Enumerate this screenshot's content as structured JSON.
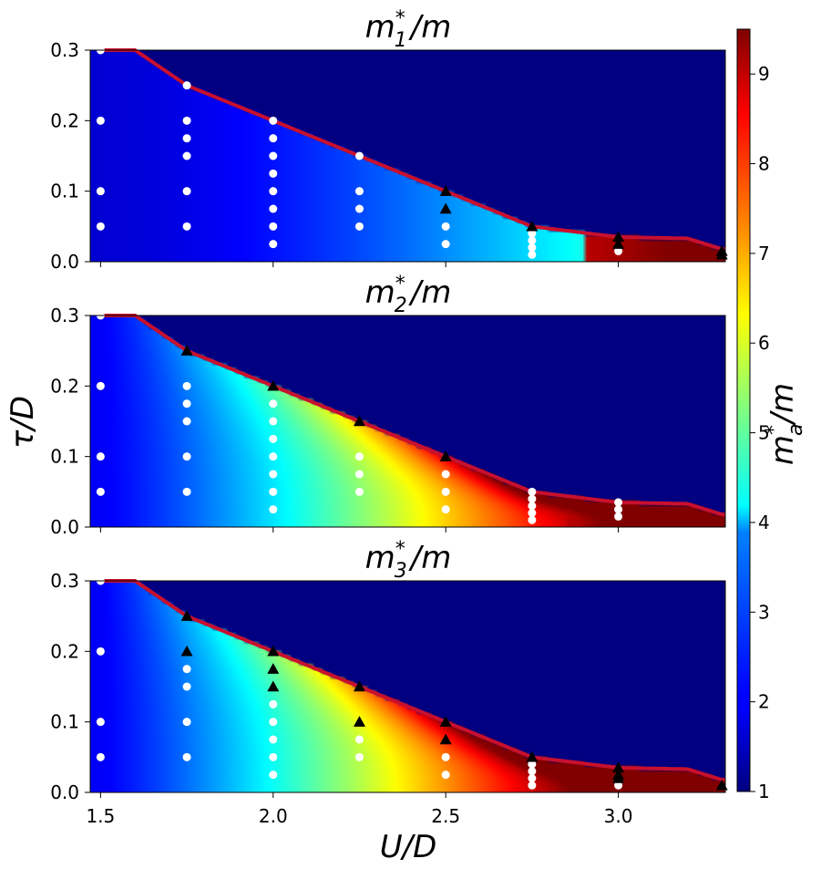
{
  "chart_data": [
    {
      "type": "heatmap",
      "panel": 1,
      "title_base": "m",
      "title_sub": "1",
      "title_sup": "*",
      "title_tail": "/m",
      "xlim": [
        1.47,
        3.31
      ],
      "ylim": [
        0.0,
        0.3
      ],
      "colormap": "jet",
      "clim": [
        1,
        9.5
      ],
      "boundary": {
        "x": [
          1.5,
          1.6,
          1.75,
          2.0,
          2.25,
          2.5,
          2.75,
          3.0,
          3.2,
          3.3
        ],
        "y": [
          0.3,
          0.3,
          0.25,
          0.2,
          0.15,
          0.1,
          0.05,
          0.035,
          0.033,
          0.018
        ]
      },
      "field_params": {
        "base": 1.7,
        "gain": 0.55,
        "power": 1.6,
        "edge": 0.0,
        "hot_from": 2.9,
        "hot_gain": 9.0
      },
      "circles": [
        {
          "x": 1.5,
          "y": 0.3
        },
        {
          "x": 1.5,
          "y": 0.2
        },
        {
          "x": 1.5,
          "y": 0.1
        },
        {
          "x": 1.5,
          "y": 0.05
        },
        {
          "x": 1.75,
          "y": 0.25
        },
        {
          "x": 1.75,
          "y": 0.2
        },
        {
          "x": 1.75,
          "y": 0.175
        },
        {
          "x": 1.75,
          "y": 0.15
        },
        {
          "x": 1.75,
          "y": 0.1
        },
        {
          "x": 1.75,
          "y": 0.05
        },
        {
          "x": 2.0,
          "y": 0.2
        },
        {
          "x": 2.0,
          "y": 0.175
        },
        {
          "x": 2.0,
          "y": 0.15
        },
        {
          "x": 2.0,
          "y": 0.125
        },
        {
          "x": 2.0,
          "y": 0.1
        },
        {
          "x": 2.0,
          "y": 0.075
        },
        {
          "x": 2.0,
          "y": 0.05
        },
        {
          "x": 2.0,
          "y": 0.025
        },
        {
          "x": 2.25,
          "y": 0.15
        },
        {
          "x": 2.25,
          "y": 0.1
        },
        {
          "x": 2.25,
          "y": 0.075
        },
        {
          "x": 2.25,
          "y": 0.05
        },
        {
          "x": 2.5,
          "y": 0.05
        },
        {
          "x": 2.5,
          "y": 0.025
        },
        {
          "x": 2.75,
          "y": 0.04
        },
        {
          "x": 2.75,
          "y": 0.03
        },
        {
          "x": 2.75,
          "y": 0.02
        },
        {
          "x": 2.75,
          "y": 0.01
        },
        {
          "x": 3.0,
          "y": 0.015
        }
      ],
      "triangles": [
        {
          "x": 2.5,
          "y": 0.1
        },
        {
          "x": 2.5,
          "y": 0.075
        },
        {
          "x": 2.75,
          "y": 0.05
        },
        {
          "x": 3.0,
          "y": 0.035
        },
        {
          "x": 3.0,
          "y": 0.025
        },
        {
          "x": 3.3,
          "y": 0.015
        },
        {
          "x": 3.3,
          "y": 0.01
        }
      ]
    },
    {
      "type": "heatmap",
      "panel": 2,
      "title_base": "m",
      "title_sub": "2",
      "title_sup": "*",
      "title_tail": "/m",
      "xlim": [
        1.47,
        3.31
      ],
      "ylim": [
        0.0,
        0.3
      ],
      "colormap": "jet",
      "clim": [
        1,
        9.5
      ],
      "boundary": {
        "x": [
          1.5,
          1.6,
          1.75,
          2.0,
          2.25,
          2.5,
          2.75,
          3.0,
          3.2,
          3.3
        ],
        "y": [
          0.3,
          0.3,
          0.25,
          0.2,
          0.15,
          0.1,
          0.05,
          0.035,
          0.033,
          0.018
        ]
      },
      "field_params": {
        "base": 2.0,
        "gain": 1.55,
        "power": 1.25,
        "edge": 2.6,
        "hot_from": 2.85,
        "hot_gain": 9.0
      },
      "circles": [
        {
          "x": 1.5,
          "y": 0.3
        },
        {
          "x": 1.5,
          "y": 0.2
        },
        {
          "x": 1.5,
          "y": 0.1
        },
        {
          "x": 1.5,
          "y": 0.05
        },
        {
          "x": 1.75,
          "y": 0.2
        },
        {
          "x": 1.75,
          "y": 0.175
        },
        {
          "x": 1.75,
          "y": 0.15
        },
        {
          "x": 1.75,
          "y": 0.1
        },
        {
          "x": 1.75,
          "y": 0.05
        },
        {
          "x": 2.0,
          "y": 0.175
        },
        {
          "x": 2.0,
          "y": 0.15
        },
        {
          "x": 2.0,
          "y": 0.125
        },
        {
          "x": 2.0,
          "y": 0.1
        },
        {
          "x": 2.0,
          "y": 0.075
        },
        {
          "x": 2.0,
          "y": 0.05
        },
        {
          "x": 2.0,
          "y": 0.025
        },
        {
          "x": 2.25,
          "y": 0.1
        },
        {
          "x": 2.25,
          "y": 0.075
        },
        {
          "x": 2.25,
          "y": 0.05
        },
        {
          "x": 2.5,
          "y": 0.075
        },
        {
          "x": 2.5,
          "y": 0.05
        },
        {
          "x": 2.5,
          "y": 0.025
        },
        {
          "x": 2.75,
          "y": 0.05
        },
        {
          "x": 2.75,
          "y": 0.04
        },
        {
          "x": 2.75,
          "y": 0.03
        },
        {
          "x": 2.75,
          "y": 0.02
        },
        {
          "x": 2.75,
          "y": 0.01
        },
        {
          "x": 3.0,
          "y": 0.035
        },
        {
          "x": 3.0,
          "y": 0.025
        },
        {
          "x": 3.0,
          "y": 0.015
        }
      ],
      "triangles": [
        {
          "x": 1.75,
          "y": 0.25
        },
        {
          "x": 2.0,
          "y": 0.2
        },
        {
          "x": 2.25,
          "y": 0.15
        },
        {
          "x": 2.5,
          "y": 0.1
        }
      ]
    },
    {
      "type": "heatmap",
      "panel": 3,
      "title_base": "m",
      "title_sub": "3",
      "title_sup": "*",
      "title_tail": "/m",
      "xlim": [
        1.47,
        3.31
      ],
      "ylim": [
        0.0,
        0.3
      ],
      "colormap": "jet",
      "clim": [
        1,
        9.5
      ],
      "boundary": {
        "x": [
          1.5,
          1.6,
          1.75,
          2.0,
          2.25,
          2.5,
          2.75,
          3.0,
          3.2,
          3.3
        ],
        "y": [
          0.3,
          0.3,
          0.25,
          0.2,
          0.15,
          0.1,
          0.05,
          0.035,
          0.033,
          0.018
        ]
      },
      "field_params": {
        "base": 2.0,
        "gain": 1.7,
        "power": 1.2,
        "edge": 2.8,
        "hot_from": 2.85,
        "hot_gain": 9.0
      },
      "circles": [
        {
          "x": 1.5,
          "y": 0.3
        },
        {
          "x": 1.5,
          "y": 0.2
        },
        {
          "x": 1.5,
          "y": 0.1
        },
        {
          "x": 1.5,
          "y": 0.05
        },
        {
          "x": 1.75,
          "y": 0.175
        },
        {
          "x": 1.75,
          "y": 0.15
        },
        {
          "x": 1.75,
          "y": 0.1
        },
        {
          "x": 1.75,
          "y": 0.05
        },
        {
          "x": 2.0,
          "y": 0.125
        },
        {
          "x": 2.0,
          "y": 0.1
        },
        {
          "x": 2.0,
          "y": 0.075
        },
        {
          "x": 2.0,
          "y": 0.05
        },
        {
          "x": 2.0,
          "y": 0.025
        },
        {
          "x": 2.25,
          "y": 0.075
        },
        {
          "x": 2.25,
          "y": 0.05
        },
        {
          "x": 2.5,
          "y": 0.05
        },
        {
          "x": 2.5,
          "y": 0.025
        },
        {
          "x": 2.75,
          "y": 0.04
        },
        {
          "x": 2.75,
          "y": 0.03
        },
        {
          "x": 2.75,
          "y": 0.02
        },
        {
          "x": 2.75,
          "y": 0.01
        },
        {
          "x": 3.0,
          "y": 0.01
        }
      ],
      "triangles": [
        {
          "x": 1.75,
          "y": 0.25
        },
        {
          "x": 1.75,
          "y": 0.2
        },
        {
          "x": 2.0,
          "y": 0.2
        },
        {
          "x": 2.0,
          "y": 0.175
        },
        {
          "x": 2.0,
          "y": 0.15
        },
        {
          "x": 2.25,
          "y": 0.15
        },
        {
          "x": 2.25,
          "y": 0.1
        },
        {
          "x": 2.5,
          "y": 0.1
        },
        {
          "x": 2.5,
          "y": 0.075
        },
        {
          "x": 2.75,
          "y": 0.05
        },
        {
          "x": 3.0,
          "y": 0.035
        },
        {
          "x": 3.0,
          "y": 0.025
        },
        {
          "x": 3.0,
          "y": 0.02
        },
        {
          "x": 3.3,
          "y": 0.01
        }
      ]
    }
  ],
  "axes": {
    "x_ticks": [
      "1.5",
      "2.0",
      "2.5",
      "3.0"
    ],
    "x_tick_values": [
      1.5,
      2.0,
      2.5,
      3.0
    ],
    "y_ticks": [
      "0.0",
      "0.1",
      "0.2",
      "0.3"
    ],
    "y_tick_values": [
      0.0,
      0.1,
      0.2,
      0.3
    ],
    "xlabel": "U/D",
    "ylabel": "τ/D"
  },
  "colorbar": {
    "ticks": [
      "1",
      "2",
      "3",
      "4",
      "5",
      "6",
      "7",
      "8",
      "9"
    ],
    "tick_values": [
      1,
      2,
      3,
      4,
      5,
      6,
      7,
      8,
      9
    ],
    "range": [
      1,
      9.5
    ],
    "label_base": "m",
    "label_sub": "a",
    "label_sup": "*",
    "label_tail": "/m"
  },
  "colors": {
    "boundary_line": "#c8102e",
    "circle_marker": "#ffffff",
    "triangle_marker": "#000000"
  }
}
